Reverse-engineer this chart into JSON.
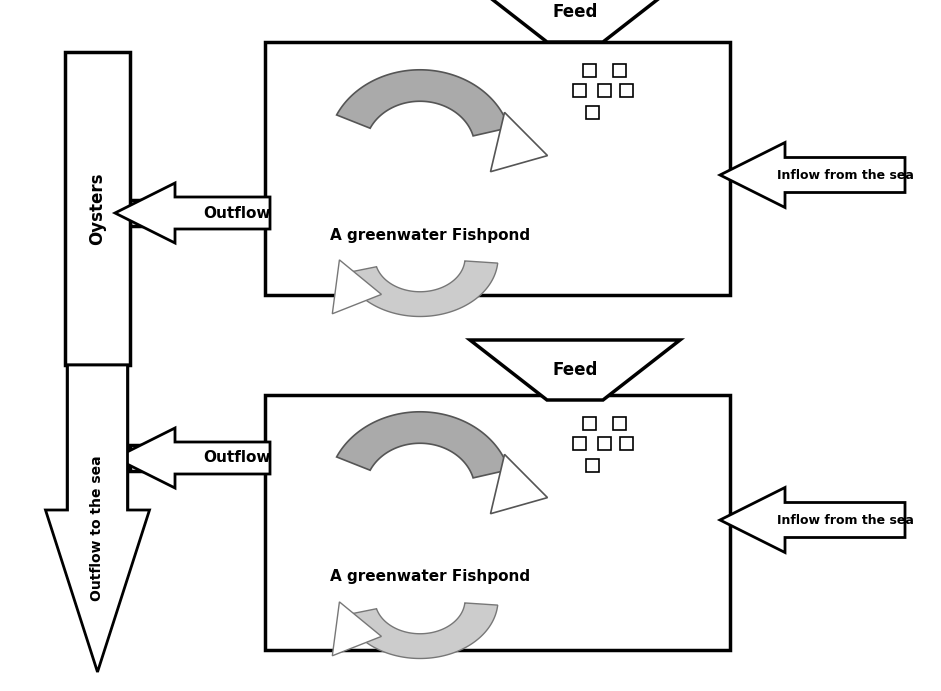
{
  "bg_color": "#ffffff",
  "fig_width": 9.41,
  "fig_height": 6.91,
  "feed1_label": "Feed",
  "feed2_label": "Feed",
  "inflow1_label": "Inflow from the sea",
  "inflow2_label": "Inflow from the sea",
  "outflow1_label": "Outflow",
  "outflow2_label": "Outflow",
  "pond1_label": "A greenwater Fishpond",
  "pond2_label": "A greenwater Fishpond",
  "oysters_label": "Oysters",
  "outflow_sea_label": "Outflow to the sea",
  "black": "#000000",
  "gray_dark": "#909090",
  "gray_light": "#c0c0c0",
  "lw": 2.0
}
